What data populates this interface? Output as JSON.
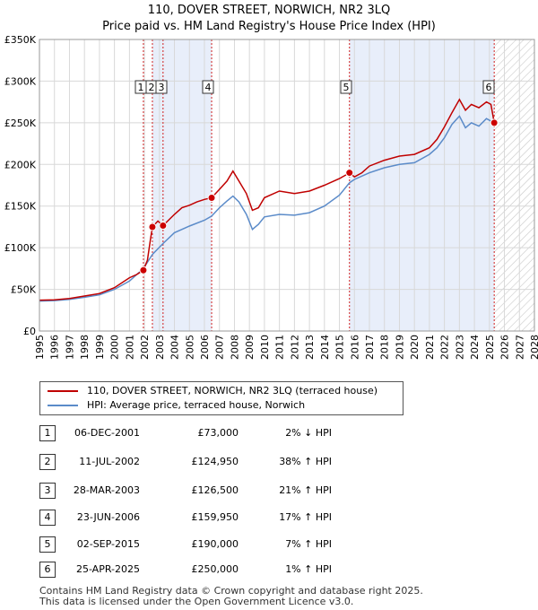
{
  "title_line1": "110, DOVER STREET, NORWICH, NR2 3LQ",
  "title_line2": "Price paid vs. HM Land Registry's House Price Index (HPI)",
  "colors": {
    "price": "#c00000",
    "hpi": "#5b8bc9",
    "band": "#e8eefa",
    "grid": "#d8d8d8"
  },
  "chart_data": {
    "type": "line",
    "xlim": [
      1995,
      2028
    ],
    "ylim": [
      0,
      350000
    ],
    "x_ticks": [
      "1995",
      "1996",
      "1997",
      "1998",
      "1999",
      "2000",
      "2001",
      "2002",
      "2003",
      "2004",
      "2005",
      "2006",
      "2007",
      "2008",
      "2009",
      "2010",
      "2011",
      "2012",
      "2013",
      "2014",
      "2015",
      "2016",
      "2017",
      "2018",
      "2019",
      "2020",
      "2021",
      "2022",
      "2023",
      "2024",
      "2025",
      "2026",
      "2027",
      "2028"
    ],
    "y_ticks": [
      {
        "value": 0,
        "label": "£0"
      },
      {
        "value": 50000,
        "label": "£50K"
      },
      {
        "value": 100000,
        "label": "£100K"
      },
      {
        "value": 150000,
        "label": "£150K"
      },
      {
        "value": 200000,
        "label": "£200K"
      },
      {
        "value": 250000,
        "label": "£250K"
      },
      {
        "value": 300000,
        "label": "£300K"
      },
      {
        "value": 350000,
        "label": "£350K"
      }
    ],
    "shaded_bands": [
      [
        2002.53,
        2006.48
      ],
      [
        2015.67,
        2025.32
      ]
    ],
    "hatched_from": 2025.32,
    "series": [
      {
        "name": "110, DOVER STREET, NORWICH, NR2 3LQ (terraced house)",
        "color": "#c00000",
        "points": [
          [
            1995,
            37000
          ],
          [
            1996,
            37500
          ],
          [
            1997,
            39000
          ],
          [
            1998,
            42000
          ],
          [
            1999,
            45000
          ],
          [
            2000,
            52000
          ],
          [
            2001,
            64000
          ],
          [
            2001.5,
            68000
          ],
          [
            2001.93,
            73000
          ],
          [
            2002.2,
            85000
          ],
          [
            2002.4,
            110000
          ],
          [
            2002.53,
            124950
          ],
          [
            2002.9,
            132000
          ],
          [
            2003.24,
            126500
          ],
          [
            2003.6,
            133000
          ],
          [
            2004,
            140000
          ],
          [
            2004.5,
            148000
          ],
          [
            2005,
            151000
          ],
          [
            2005.5,
            155000
          ],
          [
            2006,
            158000
          ],
          [
            2006.48,
            159950
          ],
          [
            2007,
            170000
          ],
          [
            2007.5,
            180000
          ],
          [
            2007.9,
            192000
          ],
          [
            2008.3,
            180000
          ],
          [
            2008.8,
            165000
          ],
          [
            2009.2,
            145000
          ],
          [
            2009.6,
            148000
          ],
          [
            2010,
            160000
          ],
          [
            2011,
            168000
          ],
          [
            2012,
            165000
          ],
          [
            2013,
            168000
          ],
          [
            2014,
            175000
          ],
          [
            2015,
            183000
          ],
          [
            2015.5,
            188000
          ],
          [
            2015.67,
            190000
          ],
          [
            2016,
            185000
          ],
          [
            2016.5,
            190000
          ],
          [
            2017,
            198000
          ],
          [
            2018,
            205000
          ],
          [
            2019,
            210000
          ],
          [
            2020,
            212000
          ],
          [
            2021,
            220000
          ],
          [
            2021.5,
            230000
          ],
          [
            2022,
            245000
          ],
          [
            2022.5,
            262000
          ],
          [
            2023,
            278000
          ],
          [
            2023.4,
            265000
          ],
          [
            2023.8,
            272000
          ],
          [
            2024.3,
            268000
          ],
          [
            2024.8,
            275000
          ],
          [
            2025.1,
            272000
          ],
          [
            2025.32,
            250000
          ]
        ]
      },
      {
        "name": "HPI: Average price, terraced house, Norwich",
        "color": "#5b8bc9",
        "points": [
          [
            1995,
            36000
          ],
          [
            1996,
            36500
          ],
          [
            1997,
            38000
          ],
          [
            1998,
            40500
          ],
          [
            1999,
            43500
          ],
          [
            2000,
            50000
          ],
          [
            2001,
            60000
          ],
          [
            2001.93,
            75000
          ],
          [
            2002.53,
            92000
          ],
          [
            2003.24,
            105000
          ],
          [
            2004,
            118000
          ],
          [
            2005,
            126000
          ],
          [
            2006,
            133000
          ],
          [
            2006.48,
            138000
          ],
          [
            2007,
            148000
          ],
          [
            2007.5,
            156000
          ],
          [
            2007.9,
            162000
          ],
          [
            2008.3,
            155000
          ],
          [
            2008.8,
            140000
          ],
          [
            2009.2,
            122000
          ],
          [
            2009.6,
            128000
          ],
          [
            2010,
            137000
          ],
          [
            2011,
            140000
          ],
          [
            2012,
            139000
          ],
          [
            2013,
            142000
          ],
          [
            2014,
            150000
          ],
          [
            2015,
            163000
          ],
          [
            2015.67,
            178000
          ],
          [
            2016,
            182000
          ],
          [
            2017,
            190000
          ],
          [
            2018,
            196000
          ],
          [
            2019,
            200000
          ],
          [
            2020,
            202000
          ],
          [
            2021,
            212000
          ],
          [
            2021.5,
            220000
          ],
          [
            2022,
            232000
          ],
          [
            2022.5,
            248000
          ],
          [
            2023,
            258000
          ],
          [
            2023.4,
            244000
          ],
          [
            2023.8,
            250000
          ],
          [
            2024.3,
            246000
          ],
          [
            2024.8,
            255000
          ],
          [
            2025.1,
            252000
          ],
          [
            2025.32,
            248000
          ]
        ]
      }
    ],
    "sales": [
      {
        "n": "1",
        "x": 2001.93,
        "y": 73000
      },
      {
        "n": "2",
        "x": 2002.53,
        "y": 124950
      },
      {
        "n": "3",
        "x": 2003.24,
        "y": 126500
      },
      {
        "n": "4",
        "x": 2006.48,
        "y": 159950
      },
      {
        "n": "5",
        "x": 2015.67,
        "y": 190000
      },
      {
        "n": "6",
        "x": 2025.32,
        "y": 250000
      }
    ]
  },
  "legend": {
    "price_label": "110, DOVER STREET, NORWICH, NR2 3LQ (terraced house)",
    "hpi_label": "HPI: Average price, terraced house, Norwich"
  },
  "transactions": [
    {
      "n": "1",
      "date": "06-DEC-2001",
      "price": "£73,000",
      "hpi": "2% ↓ HPI"
    },
    {
      "n": "2",
      "date": "11-JUL-2002",
      "price": "£124,950",
      "hpi": "38% ↑ HPI"
    },
    {
      "n": "3",
      "date": "28-MAR-2003",
      "price": "£126,500",
      "hpi": "21% ↑ HPI"
    },
    {
      "n": "4",
      "date": "23-JUN-2006",
      "price": "£159,950",
      "hpi": "17% ↑ HPI"
    },
    {
      "n": "5",
      "date": "02-SEP-2015",
      "price": "£190,000",
      "hpi": "7% ↑ HPI"
    },
    {
      "n": "6",
      "date": "25-APR-2025",
      "price": "£250,000",
      "hpi": "1% ↑ HPI"
    }
  ],
  "footer_line1": "Contains HM Land Registry data © Crown copyright and database right 2025.",
  "footer_line2": "This data is licensed under the Open Government Licence v3.0."
}
